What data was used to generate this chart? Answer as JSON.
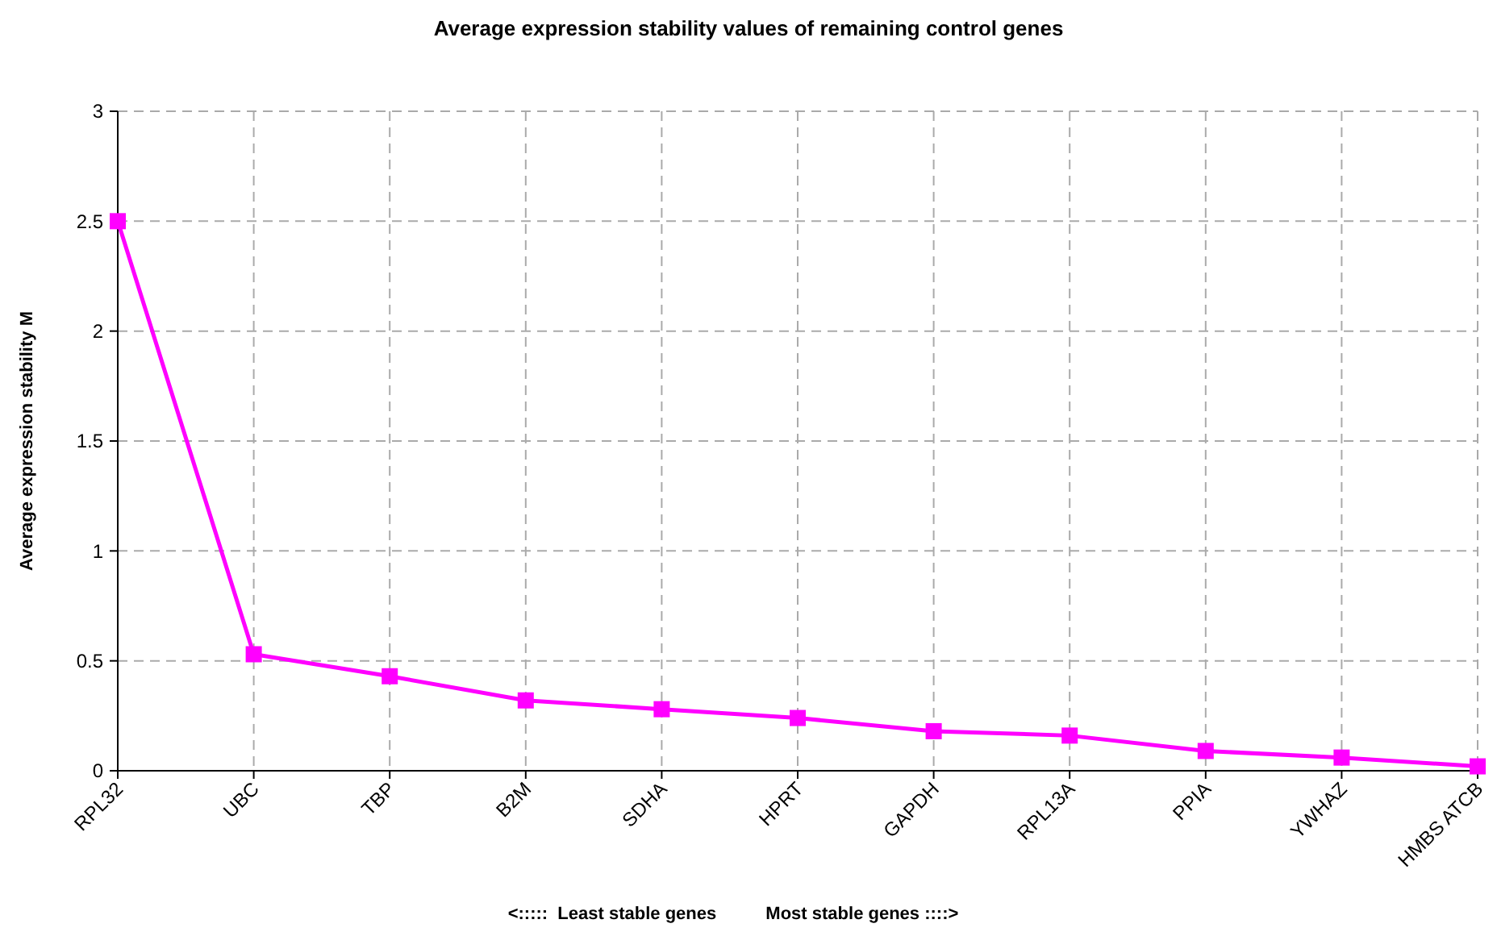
{
  "chart_data": {
    "type": "line",
    "title": "Average expression stability values of remaining control genes",
    "xlabel": "<:::::  Least stable genes          Most stable genes ::::>",
    "ylabel": "Average expression stability M",
    "categories": [
      "RPL32",
      "UBC",
      "TBP",
      "B2M",
      "SDHA",
      "HPRT",
      "GAPDH",
      "RPL13A",
      "PPIA",
      "YWHAZ",
      "HMBS ATCB"
    ],
    "series": [
      {
        "color": "#ff00ff",
        "values": [
          2.5,
          0.53,
          0.43,
          0.32,
          0.28,
          0.24,
          0.18,
          0.16,
          0.09,
          0.06,
          0.02
        ]
      }
    ],
    "ylim": [
      0,
      3
    ],
    "yticks": [
      0,
      0.5,
      1,
      1.5,
      2,
      2.5,
      3
    ],
    "grid": true,
    "marker": "square",
    "line_style": "solid"
  }
}
